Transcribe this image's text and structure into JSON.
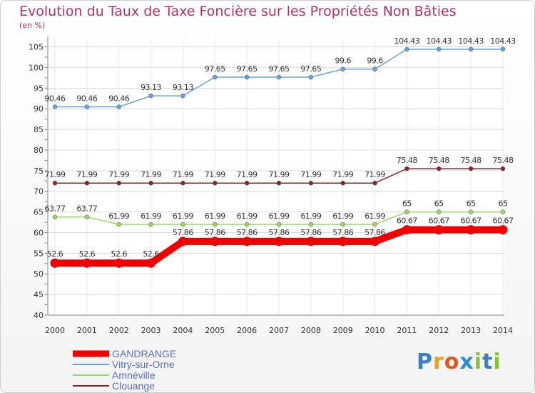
{
  "chart_data": {
    "type": "line",
    "title": "Evolution du Taux de Taxe Foncière sur les Propriétés Non Bâties",
    "ylabel": "(en %)",
    "xlabel": "",
    "x": [
      "2000",
      "2001",
      "2002",
      "2003",
      "2004",
      "2005",
      "2006",
      "2007",
      "2008",
      "2009",
      "2010",
      "2011",
      "2012",
      "2013",
      "2014"
    ],
    "yticks": [
      "40",
      "45",
      "50",
      "55",
      "60",
      "65",
      "70",
      "75",
      "80",
      "85",
      "90",
      "95",
      "100",
      "105"
    ],
    "ylim": [
      40,
      107
    ],
    "grid": true,
    "legend_position": "bottom-left",
    "series": [
      {
        "name": "Vitry-sur-Orne",
        "color": "#6aa3d1",
        "values": [
          90.46,
          90.46,
          90.46,
          93.13,
          93.13,
          97.65,
          97.65,
          97.65,
          97.65,
          99.6,
          99.6,
          104.43,
          104.43,
          104.43,
          104.43
        ],
        "labels": [
          "90.46",
          "90.46",
          "90.46",
          "93.13",
          "93.13",
          "97.65",
          "97.65",
          "97.65",
          "97.65",
          "99.6",
          "99.6",
          "104.43",
          "104.43",
          "104.43",
          "104.43"
        ]
      },
      {
        "name": "Clouange",
        "color": "#7a2a2a",
        "values": [
          71.99,
          71.99,
          71.99,
          71.99,
          71.99,
          71.99,
          71.99,
          71.99,
          71.99,
          71.99,
          71.99,
          75.48,
          75.48,
          75.48,
          75.48
        ],
        "labels": [
          "71.99",
          "71.99",
          "71.99",
          "71.99",
          "71.99",
          "71.99",
          "71.99",
          "71.99",
          "71.99",
          "71.99",
          "71.99",
          "75.48",
          "75.48",
          "75.48",
          "75.48"
        ]
      },
      {
        "name": "Amnéville",
        "color": "#9ed36a",
        "values": [
          63.77,
          63.77,
          61.99,
          61.99,
          61.99,
          61.99,
          61.99,
          61.99,
          61.99,
          61.99,
          61.99,
          65,
          65,
          65,
          65
        ],
        "labels": [
          "63.77",
          "63.77",
          "61.99",
          "61.99",
          "61.99",
          "61.99",
          "61.99",
          "61.99",
          "61.99",
          "61.99",
          "61.99",
          "65",
          "65",
          "65",
          "65"
        ]
      },
      {
        "name": "GANDRANGE",
        "color": "#ee0000",
        "values": [
          52.6,
          52.6,
          52.6,
          52.6,
          57.86,
          57.86,
          57.86,
          57.86,
          57.86,
          57.86,
          57.86,
          60.67,
          60.67,
          60.67,
          60.67
        ],
        "labels": [
          "52.6",
          "52.6",
          "52.6",
          "52.6",
          "57.86",
          "57.86",
          "57.86",
          "57.86",
          "57.86",
          "57.86",
          "57.86",
          "60.67",
          "60.67",
          "60.67",
          "60.67"
        ]
      }
    ],
    "legend": [
      {
        "name": "GANDRANGE",
        "color": "#ee0000"
      },
      {
        "name": "Vitry-sur-Orne",
        "color": "#6aa3d1"
      },
      {
        "name": "Amnéville",
        "color": "#9ed36a"
      },
      {
        "name": "Clouange",
        "color": "#7a2a2a"
      }
    ]
  },
  "logo": {
    "letters": [
      "P",
      "r",
      "o",
      "x",
      "i",
      "t",
      "i"
    ],
    "colors": [
      "#3a7fc1",
      "#f0a020",
      "#e05a20",
      "#2a8fd0",
      "#8ac03a",
      "#3a7fc1",
      "#8ac03a"
    ]
  }
}
